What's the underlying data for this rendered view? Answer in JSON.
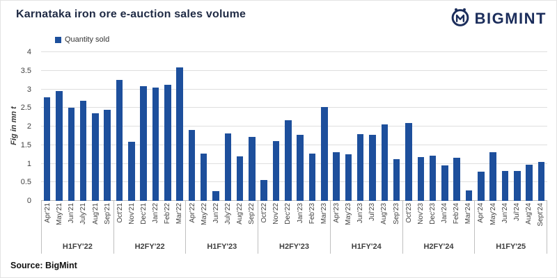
{
  "header": {
    "title": "Karnataka iron ore e-auction sales volume",
    "brand": "BIGMINT"
  },
  "legend": {
    "label": "Quantity sold"
  },
  "source_note": "Source: BigMint",
  "chart_data": {
    "type": "bar",
    "title": "Karnataka iron ore e-auction sales volume",
    "series_name": "Quantity sold",
    "ylabel": "Fig in mn t",
    "ylim": [
      0,
      4
    ],
    "yticks": [
      0,
      0.5,
      1,
      1.5,
      2,
      2.5,
      3,
      3.5,
      4
    ],
    "grid": true,
    "legend_position": "top-left",
    "bar_color": "#1d4f9c",
    "groups": [
      {
        "label": "H1FY'22",
        "months": [
          "Apr'21",
          "May'21",
          "Jun'21",
          "July'21",
          "Aug'21",
          "Sep'21"
        ],
        "values": [
          2.78,
          2.95,
          2.5,
          2.7,
          2.35,
          2.45
        ]
      },
      {
        "label": "H2FY'22",
        "months": [
          "Oct'21",
          "Nov'21",
          "Dec'21",
          "Jan'22",
          "Feb'22",
          "Mar'22"
        ],
        "values": [
          3.25,
          1.58,
          3.08,
          3.05,
          3.12,
          3.58
        ]
      },
      {
        "label": "H1FY'23",
        "months": [
          "Apr'22",
          "May'22",
          "Jun'22",
          "July'22",
          "Aug'22",
          "Sep'22"
        ],
        "values": [
          1.9,
          1.27,
          0.27,
          1.82,
          1.2,
          1.72
        ]
      },
      {
        "label": "H2FY'23",
        "months": [
          "Oct'22",
          "Nov'22",
          "Dec'22",
          "Jan'23",
          "Feb'23",
          "Mar'23"
        ],
        "values": [
          0.57,
          1.6,
          2.17,
          1.77,
          1.28,
          2.52
        ]
      },
      {
        "label": "H1FY'24",
        "months": [
          "Apr'23",
          "May'23",
          "Jun'23",
          "Jul'23",
          "Aug'23",
          "Sep'23"
        ],
        "values": [
          1.3,
          1.25,
          1.8,
          1.77,
          2.05,
          1.13
        ]
      },
      {
        "label": "H2FY'24",
        "months": [
          "Oct'23",
          "Nov'23",
          "Dec'23",
          "Jan'24",
          "Feb'24",
          "Mar'24"
        ],
        "values": [
          2.1,
          1.17,
          1.22,
          0.95,
          1.15,
          0.28
        ]
      },
      {
        "label": "H1FY'25",
        "months": [
          "Apr'24",
          "May'24",
          "Jun'24",
          "Jul'24",
          "Aug'24",
          "Sept'24"
        ],
        "values": [
          0.78,
          1.3,
          0.8,
          0.8,
          0.97,
          1.05
        ]
      }
    ]
  }
}
